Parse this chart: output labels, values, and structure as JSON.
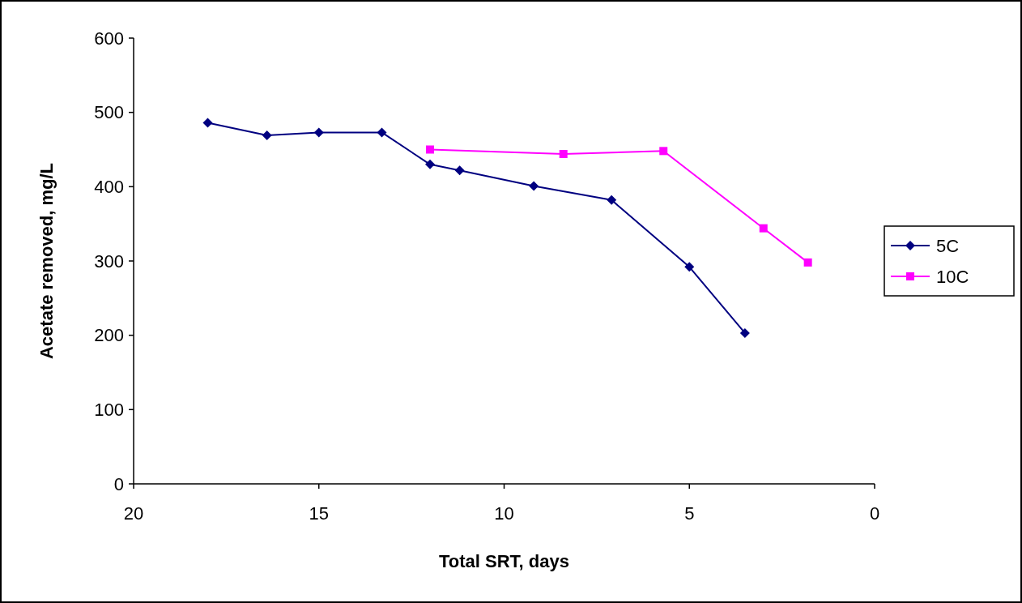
{
  "chart_data": {
    "type": "line",
    "xlabel": "Total SRT, days",
    "ylabel": "Acetate removed, mg/L",
    "xlim": [
      20,
      0
    ],
    "xticks": [
      20,
      15,
      10,
      5,
      0
    ],
    "ylim": [
      0,
      600
    ],
    "yticks": [
      0,
      100,
      200,
      300,
      400,
      500,
      600
    ],
    "grid": false,
    "legend": "right",
    "series": [
      {
        "name": "5C",
        "color": "#000080",
        "marker": "diamond",
        "x": [
          18,
          16.4,
          15,
          13.3,
          12,
          11.2,
          9.2,
          7.1,
          5,
          3.5
        ],
        "values": [
          486,
          469,
          473,
          473,
          430,
          422,
          401,
          382,
          292,
          203
        ]
      },
      {
        "name": "10C",
        "color": "#ff00ff",
        "marker": "square",
        "x": [
          12,
          8.4,
          5.7,
          3,
          1.8
        ],
        "values": [
          450,
          444,
          448,
          344,
          298
        ]
      }
    ]
  }
}
